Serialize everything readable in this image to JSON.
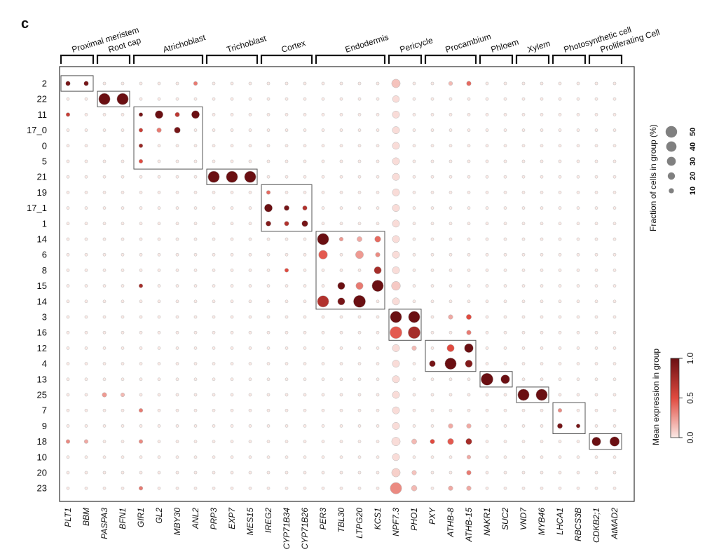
{
  "panel_label": "c",
  "chart_data": {
    "type": "dotplot",
    "title": "",
    "rows": [
      "2",
      "22",
      "11",
      "17_0",
      "0",
      "5",
      "21",
      "19",
      "17_1",
      "1",
      "14",
      "6",
      "8",
      "15",
      "14",
      "3",
      "16",
      "12",
      "4",
      "13",
      "25",
      "7",
      "9",
      "18",
      "10",
      "20",
      "23"
    ],
    "genes": [
      "PLT1",
      "BBM",
      "PASPA3",
      "BFN1",
      "GIR1",
      "GL2",
      "MBY30",
      "ANL2",
      "PRP3",
      "EXP7",
      "MES15",
      "IREG2",
      "CYP71B34",
      "CYP71B26",
      "PER3",
      "TBL30",
      "LTPG20",
      "KCS1",
      "NPF7.3",
      "PHO1",
      "PXY",
      "ATHB-8",
      "ATHB-15",
      "NAKR1",
      "SUC2",
      "VND7",
      "MYB46",
      "LHCA1",
      "RBCS3B",
      "CDKB2;1",
      "AtMAD2"
    ],
    "groups": [
      {
        "label": "Proximal meristem",
        "genes": [
          "PLT1",
          "BBM"
        ],
        "clusters": [
          "2"
        ]
      },
      {
        "label": "Root cap",
        "genes": [
          "PASPA3",
          "BFN1"
        ],
        "clusters": [
          "22"
        ]
      },
      {
        "label": "Atrichoblast",
        "genes": [
          "GIR1",
          "GL2",
          "MBY30",
          "ANL2"
        ],
        "clusters": [
          "11",
          "17_0",
          "0",
          "5"
        ]
      },
      {
        "label": "Trichoblast",
        "genes": [
          "PRP3",
          "EXP7",
          "MES15"
        ],
        "clusters": [
          "21"
        ]
      },
      {
        "label": "Cortex",
        "genes": [
          "IREG2",
          "CYP71B34",
          "CYP71B26"
        ],
        "clusters": [
          "19",
          "17_1",
          "1"
        ]
      },
      {
        "label": "Endodermis",
        "genes": [
          "PER3",
          "TBL30",
          "LTPG20",
          "KCS1"
        ],
        "clusters": [
          "14",
          "6",
          "8",
          "15",
          "14"
        ]
      },
      {
        "label": "Pericycle",
        "genes": [
          "NPF7.3",
          "PHO1"
        ],
        "clusters": [
          "3",
          "16"
        ]
      },
      {
        "label": "Procambium",
        "genes": [
          "PXY",
          "ATHB-8",
          "ATHB-15"
        ],
        "clusters": [
          "12",
          "4"
        ]
      },
      {
        "label": "Phloem",
        "genes": [
          "NAKR1",
          "SUC2"
        ],
        "clusters": [
          "13"
        ]
      },
      {
        "label": "Xylem",
        "genes": [
          "VND7",
          "MYB46"
        ],
        "clusters": [
          "25"
        ]
      },
      {
        "label": "Photosynthetic cell",
        "genes": [
          "LHCA1",
          "RBCS3B"
        ],
        "clusters": [
          "7",
          "9"
        ]
      },
      {
        "label": "Proliferating Cell",
        "genes": [
          "CDKB2;1",
          "AtMAD2"
        ],
        "clusters": [
          "18"
        ]
      }
    ],
    "default_dot": {
      "fraction_pct": 3,
      "expression": 0.0
    },
    "points": [
      {
        "row": "2",
        "gene": "PLT1",
        "fraction_pct": 8,
        "expression": 0.95
      },
      {
        "row": "2",
        "gene": "BBM",
        "fraction_pct": 8,
        "expression": 0.95
      },
      {
        "row": "2",
        "gene": "ANL2",
        "fraction_pct": 6,
        "expression": 0.35
      },
      {
        "row": "2",
        "gene": "NPF7.3",
        "fraction_pct": 28,
        "expression": 0.12
      },
      {
        "row": "2",
        "gene": "ATHB-8",
        "fraction_pct": 6,
        "expression": 0.15
      },
      {
        "row": "2",
        "gene": "ATHB-15",
        "fraction_pct": 8,
        "expression": 0.4
      },
      {
        "row": "22",
        "gene": "PASPA3",
        "fraction_pct": 50,
        "expression": 1.0
      },
      {
        "row": "22",
        "gene": "BFN1",
        "fraction_pct": 50,
        "expression": 1.0
      },
      {
        "row": "22",
        "gene": "NPF7.3",
        "fraction_pct": 18,
        "expression": 0.04
      },
      {
        "row": "11",
        "gene": "PLT1",
        "fraction_pct": 6,
        "expression": 0.6
      },
      {
        "row": "11",
        "gene": "GIR1",
        "fraction_pct": 6,
        "expression": 0.95
      },
      {
        "row": "11",
        "gene": "GL2",
        "fraction_pct": 24,
        "expression": 1.0
      },
      {
        "row": "11",
        "gene": "MBY30",
        "fraction_pct": 8,
        "expression": 0.65
      },
      {
        "row": "11",
        "gene": "ANL2",
        "fraction_pct": 24,
        "expression": 1.0
      },
      {
        "row": "11",
        "gene": "NPF7.3",
        "fraction_pct": 20,
        "expression": 0.04
      },
      {
        "row": "17_0",
        "gene": "GIR1",
        "fraction_pct": 6,
        "expression": 0.6
      },
      {
        "row": "17_0",
        "gene": "GL2",
        "fraction_pct": 8,
        "expression": 0.35
      },
      {
        "row": "17_0",
        "gene": "MBY30",
        "fraction_pct": 14,
        "expression": 0.95
      },
      {
        "row": "17_0",
        "gene": "NPF7.3",
        "fraction_pct": 20,
        "expression": 0.04
      },
      {
        "row": "0",
        "gene": "GIR1",
        "fraction_pct": 6,
        "expression": 0.8
      },
      {
        "row": "0",
        "gene": "NPF7.3",
        "fraction_pct": 20,
        "expression": 0.04
      },
      {
        "row": "5",
        "gene": "GIR1",
        "fraction_pct": 6,
        "expression": 0.5
      },
      {
        "row": "5",
        "gene": "NPF7.3",
        "fraction_pct": 20,
        "expression": 0.04
      },
      {
        "row": "21",
        "gene": "PRP3",
        "fraction_pct": 50,
        "expression": 1.0
      },
      {
        "row": "21",
        "gene": "EXP7",
        "fraction_pct": 50,
        "expression": 1.0
      },
      {
        "row": "21",
        "gene": "MES15",
        "fraction_pct": 50,
        "expression": 1.0
      },
      {
        "row": "21",
        "gene": "NPF7.3",
        "fraction_pct": 20,
        "expression": 0.04
      },
      {
        "row": "19",
        "gene": "IREG2",
        "fraction_pct": 6,
        "expression": 0.4
      },
      {
        "row": "19",
        "gene": "NPF7.3",
        "fraction_pct": 20,
        "expression": 0.04
      },
      {
        "row": "17_1",
        "gene": "IREG2",
        "fraction_pct": 24,
        "expression": 1.0
      },
      {
        "row": "17_1",
        "gene": "CYP71B34",
        "fraction_pct": 10,
        "expression": 0.95
      },
      {
        "row": "17_1",
        "gene": "CYP71B26",
        "fraction_pct": 8,
        "expression": 0.7
      },
      {
        "row": "17_1",
        "gene": "NPF7.3",
        "fraction_pct": 20,
        "expression": 0.04
      },
      {
        "row": "1",
        "gene": "IREG2",
        "fraction_pct": 10,
        "expression": 0.9
      },
      {
        "row": "1",
        "gene": "CYP71B34",
        "fraction_pct": 8,
        "expression": 0.7
      },
      {
        "row": "1",
        "gene": "CYP71B26",
        "fraction_pct": 14,
        "expression": 0.95
      },
      {
        "row": "1",
        "gene": "NPF7.3",
        "fraction_pct": 20,
        "expression": 0.04
      },
      {
        "row": "14",
        "gene": "PER3",
        "fraction_pct": 50,
        "expression": 1.0
      },
      {
        "row": "14",
        "gene": "TBL30",
        "fraction_pct": 6,
        "expression": 0.25
      },
      {
        "row": "14",
        "gene": "LTPG20",
        "fraction_pct": 10,
        "expression": 0.2
      },
      {
        "row": "14",
        "gene": "NPF7.3",
        "fraction_pct": 20,
        "expression": 0.04
      },
      {
        "row": "6",
        "gene": "PER3",
        "fraction_pct": 30,
        "expression": 0.45
      },
      {
        "row": "6",
        "gene": "LTPG20",
        "fraction_pct": 24,
        "expression": 0.25
      },
      {
        "row": "6",
        "gene": "KCS1",
        "fraction_pct": 8,
        "expression": 0.3
      },
      {
        "row": "6",
        "gene": "NPF7.3",
        "fraction_pct": 20,
        "expression": 0.04
      },
      {
        "row": "8",
        "gene": "CYP71B34",
        "fraction_pct": 6,
        "expression": 0.5
      },
      {
        "row": "8",
        "gene": "KCS1",
        "fraction_pct": 20,
        "expression": 0.75
      },
      {
        "row": "8",
        "gene": "NPF7.3",
        "fraction_pct": 20,
        "expression": 0.04
      },
      {
        "row": "15",
        "gene": "GIR1",
        "fraction_pct": 6,
        "expression": 0.75
      },
      {
        "row": "15",
        "gene": "TBL30",
        "fraction_pct": 20,
        "expression": 1.0
      },
      {
        "row": "15",
        "gene": "LTPG20",
        "fraction_pct": 20,
        "expression": 0.35
      },
      {
        "row": "15",
        "gene": "KCS1",
        "fraction_pct": 50,
        "expression": 1.0
      },
      {
        "row": "15",
        "gene": "NPF7.3",
        "fraction_pct": 30,
        "expression": 0.1
      },
      {
        "row": "14",
        "gene": "PER3",
        "fraction_pct": 50,
        "expression": 0.7
      },
      {
        "row": "14",
        "gene": "TBL30",
        "fraction_pct": 20,
        "expression": 0.95
      },
      {
        "row": "14",
        "gene": "LTPG20",
        "fraction_pct": 55,
        "expression": 1.0
      },
      {
        "row": "14",
        "gene": "KCS1",
        "fraction_pct": 14,
        "expression": 0.4
      },
      {
        "row": "14",
        "gene": "NPF7.3",
        "fraction_pct": 20,
        "expression": 0.04
      },
      {
        "row": "3",
        "gene": "NPF7.3",
        "fraction_pct": 50,
        "expression": 1.0
      },
      {
        "row": "3",
        "gene": "PHO1",
        "fraction_pct": 50,
        "expression": 1.0
      },
      {
        "row": "3",
        "gene": "ATHB-8",
        "fraction_pct": 8,
        "expression": 0.2
      },
      {
        "row": "3",
        "gene": "ATHB-15",
        "fraction_pct": 10,
        "expression": 0.5
      },
      {
        "row": "16",
        "gene": "NPF7.3",
        "fraction_pct": 55,
        "expression": 0.45
      },
      {
        "row": "16",
        "gene": "PHO1",
        "fraction_pct": 55,
        "expression": 0.75
      },
      {
        "row": "16",
        "gene": "ATHB-15",
        "fraction_pct": 8,
        "expression": 0.35
      },
      {
        "row": "12",
        "gene": "NPF7.3",
        "fraction_pct": 20,
        "expression": 0.04
      },
      {
        "row": "12",
        "gene": "PHO1",
        "fraction_pct": 8,
        "expression": 0.15
      },
      {
        "row": "12",
        "gene": "ATHB-8",
        "fraction_pct": 20,
        "expression": 0.5
      },
      {
        "row": "12",
        "gene": "ATHB-15",
        "fraction_pct": 30,
        "expression": 1.0
      },
      {
        "row": "4",
        "gene": "NPF7.3",
        "fraction_pct": 20,
        "expression": 0.04
      },
      {
        "row": "4",
        "gene": "PXY",
        "fraction_pct": 14,
        "expression": 0.95
      },
      {
        "row": "4",
        "gene": "ATHB-8",
        "fraction_pct": 50,
        "expression": 1.0
      },
      {
        "row": "4",
        "gene": "ATHB-15",
        "fraction_pct": 20,
        "expression": 0.9
      },
      {
        "row": "13",
        "gene": "NPF7.3",
        "fraction_pct": 20,
        "expression": 0.04
      },
      {
        "row": "13",
        "gene": "NAKR1",
        "fraction_pct": 55,
        "expression": 1.0
      },
      {
        "row": "13",
        "gene": "SUC2",
        "fraction_pct": 30,
        "expression": 1.0
      },
      {
        "row": "25",
        "gene": "PASPA3",
        "fraction_pct": 8,
        "expression": 0.25
      },
      {
        "row": "25",
        "gene": "BFN1",
        "fraction_pct": 6,
        "expression": 0.15
      },
      {
        "row": "25",
        "gene": "NPF7.3",
        "fraction_pct": 20,
        "expression": 0.04
      },
      {
        "row": "25",
        "gene": "VND7",
        "fraction_pct": 50,
        "expression": 1.0
      },
      {
        "row": "25",
        "gene": "MYB46",
        "fraction_pct": 50,
        "expression": 1.0
      },
      {
        "row": "7",
        "gene": "GIR1",
        "fraction_pct": 6,
        "expression": 0.35
      },
      {
        "row": "7",
        "gene": "NPF7.3",
        "fraction_pct": 20,
        "expression": 0.04
      },
      {
        "row": "7",
        "gene": "LHCA1",
        "fraction_pct": 6,
        "expression": 0.3
      },
      {
        "row": "9",
        "gene": "NPF7.3",
        "fraction_pct": 20,
        "expression": 0.04
      },
      {
        "row": "9",
        "gene": "ATHB-8",
        "fraction_pct": 8,
        "expression": 0.2
      },
      {
        "row": "9",
        "gene": "ATHB-15",
        "fraction_pct": 8,
        "expression": 0.2
      },
      {
        "row": "9",
        "gene": "LHCA1",
        "fraction_pct": 10,
        "expression": 0.95
      },
      {
        "row": "9",
        "gene": "RBCS3B",
        "fraction_pct": 6,
        "expression": 0.95
      },
      {
        "row": "18",
        "gene": "PLT1",
        "fraction_pct": 6,
        "expression": 0.3
      },
      {
        "row": "18",
        "gene": "BBM",
        "fraction_pct": 6,
        "expression": 0.2
      },
      {
        "row": "18",
        "gene": "GIR1",
        "fraction_pct": 6,
        "expression": 0.3
      },
      {
        "row": "18",
        "gene": "NPF7.3",
        "fraction_pct": 28,
        "expression": 0.04
      },
      {
        "row": "18",
        "gene": "PHO1",
        "fraction_pct": 10,
        "expression": 0.15
      },
      {
        "row": "18",
        "gene": "PXY",
        "fraction_pct": 8,
        "expression": 0.5
      },
      {
        "row": "18",
        "gene": "ATHB-8",
        "fraction_pct": 14,
        "expression": 0.45
      },
      {
        "row": "18",
        "gene": "ATHB-15",
        "fraction_pct": 14,
        "expression": 0.75
      },
      {
        "row": "18",
        "gene": "CDKB2;1",
        "fraction_pct": 30,
        "expression": 1.0
      },
      {
        "row": "18",
        "gene": "AtMAD2",
        "fraction_pct": 35,
        "expression": 1.0
      },
      {
        "row": "10",
        "gene": "NPF7.3",
        "fraction_pct": 20,
        "expression": 0.04
      },
      {
        "row": "10",
        "gene": "ATHB-15",
        "fraction_pct": 6,
        "expression": 0.2
      },
      {
        "row": "20",
        "gene": "NPF7.3",
        "fraction_pct": 28,
        "expression": 0.08
      },
      {
        "row": "20",
        "gene": "PHO1",
        "fraction_pct": 8,
        "expression": 0.12
      },
      {
        "row": "20",
        "gene": "ATHB-15",
        "fraction_pct": 8,
        "expression": 0.35
      },
      {
        "row": "23",
        "gene": "GIR1",
        "fraction_pct": 6,
        "expression": 0.35
      },
      {
        "row": "23",
        "gene": "NPF7.3",
        "fraction_pct": 50,
        "expression": 0.3
      },
      {
        "row": "23",
        "gene": "PHO1",
        "fraction_pct": 12,
        "expression": 0.15
      },
      {
        "row": "23",
        "gene": "ATHB-8",
        "fraction_pct": 8,
        "expression": 0.2
      },
      {
        "row": "23",
        "gene": "ATHB-15",
        "fraction_pct": 8,
        "expression": 0.2
      }
    ],
    "size_legend": {
      "title": "Fraction of cells in group (%)",
      "values": [
        10,
        20,
        30,
        40,
        50
      ]
    },
    "color_legend": {
      "title": "Mean expression in group",
      "ticks": [
        "0.0",
        "0.5",
        "1.0"
      ],
      "low_color": "#fbe9e5",
      "mid_color": "#e04a3f",
      "high_color": "#6a0f12"
    },
    "grid": false
  }
}
